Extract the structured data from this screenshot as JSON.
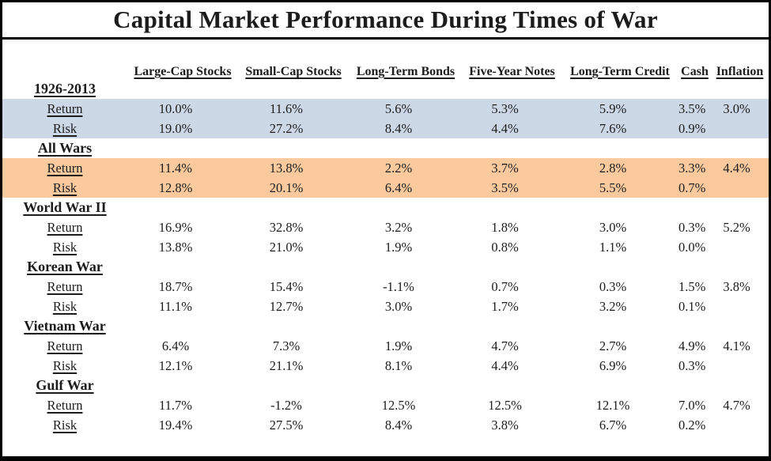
{
  "title": "Capital Market Performance During Times of War",
  "colors": {
    "highlight_blue": "#cdd8e7",
    "highlight_orange": "#faca9e",
    "border": "#000000",
    "text": "#1c1c1c"
  },
  "row_label_header": "",
  "chart_data": {
    "type": "table",
    "title": "Capital Market Performance During Times of War",
    "columns": [
      "Large-Cap Stocks",
      "Small-Cap Stocks",
      "Long-Term Bonds",
      "Five-Year Notes",
      "Long-Term Credit",
      "Cash",
      "Inflation"
    ],
    "row_kinds": [
      "Return",
      "Risk"
    ],
    "sections": [
      {
        "name": "1926-2013",
        "highlight": "highlight_blue",
        "rows": [
          {
            "label": "Return",
            "values": [
              "10.0%",
              "11.6%",
              "5.6%",
              "5.3%",
              "5.9%",
              "3.5%",
              "3.0%"
            ]
          },
          {
            "label": "Risk",
            "values": [
              "19.0%",
              "27.2%",
              "8.4%",
              "4.4%",
              "7.6%",
              "0.9%",
              ""
            ]
          }
        ]
      },
      {
        "name": "All Wars",
        "highlight": "highlight_orange",
        "rows": [
          {
            "label": "Return",
            "values": [
              "11.4%",
              "13.8%",
              "2.2%",
              "3.7%",
              "2.8%",
              "3.3%",
              "4.4%"
            ]
          },
          {
            "label": "Risk",
            "values": [
              "12.8%",
              "20.1%",
              "6.4%",
              "3.5%",
              "5.5%",
              "0.7%",
              ""
            ]
          }
        ]
      },
      {
        "name": "World War II",
        "highlight": null,
        "rows": [
          {
            "label": "Return",
            "values": [
              "16.9%",
              "32.8%",
              "3.2%",
              "1.8%",
              "3.0%",
              "0.3%",
              "5.2%"
            ]
          },
          {
            "label": "Risk",
            "values": [
              "13.8%",
              "21.0%",
              "1.9%",
              "0.8%",
              "1.1%",
              "0.0%",
              ""
            ]
          }
        ]
      },
      {
        "name": "Korean War",
        "highlight": null,
        "rows": [
          {
            "label": "Return",
            "values": [
              "18.7%",
              "15.4%",
              "-1.1%",
              "0.7%",
              "0.3%",
              "1.5%",
              "3.8%"
            ]
          },
          {
            "label": "Risk",
            "values": [
              "11.1%",
              "12.7%",
              "3.0%",
              "1.7%",
              "3.2%",
              "0.1%",
              ""
            ]
          }
        ]
      },
      {
        "name": "Vietnam War",
        "highlight": null,
        "rows": [
          {
            "label": "Return",
            "values": [
              "6.4%",
              "7.3%",
              "1.9%",
              "4.7%",
              "2.7%",
              "4.9%",
              "4.1%"
            ]
          },
          {
            "label": "Risk",
            "values": [
              "12.1%",
              "21.1%",
              "8.1%",
              "4.4%",
              "6.9%",
              "0.3%",
              ""
            ]
          }
        ]
      },
      {
        "name": "Gulf War",
        "highlight": null,
        "rows": [
          {
            "label": "Return",
            "values": [
              "11.7%",
              "-1.2%",
              "12.5%",
              "12.5%",
              "12.1%",
              "7.0%",
              "4.7%"
            ]
          },
          {
            "label": "Risk",
            "values": [
              "19.4%",
              "27.5%",
              "8.4%",
              "3.8%",
              "6.7%",
              "0.2%",
              ""
            ]
          }
        ]
      }
    ]
  }
}
